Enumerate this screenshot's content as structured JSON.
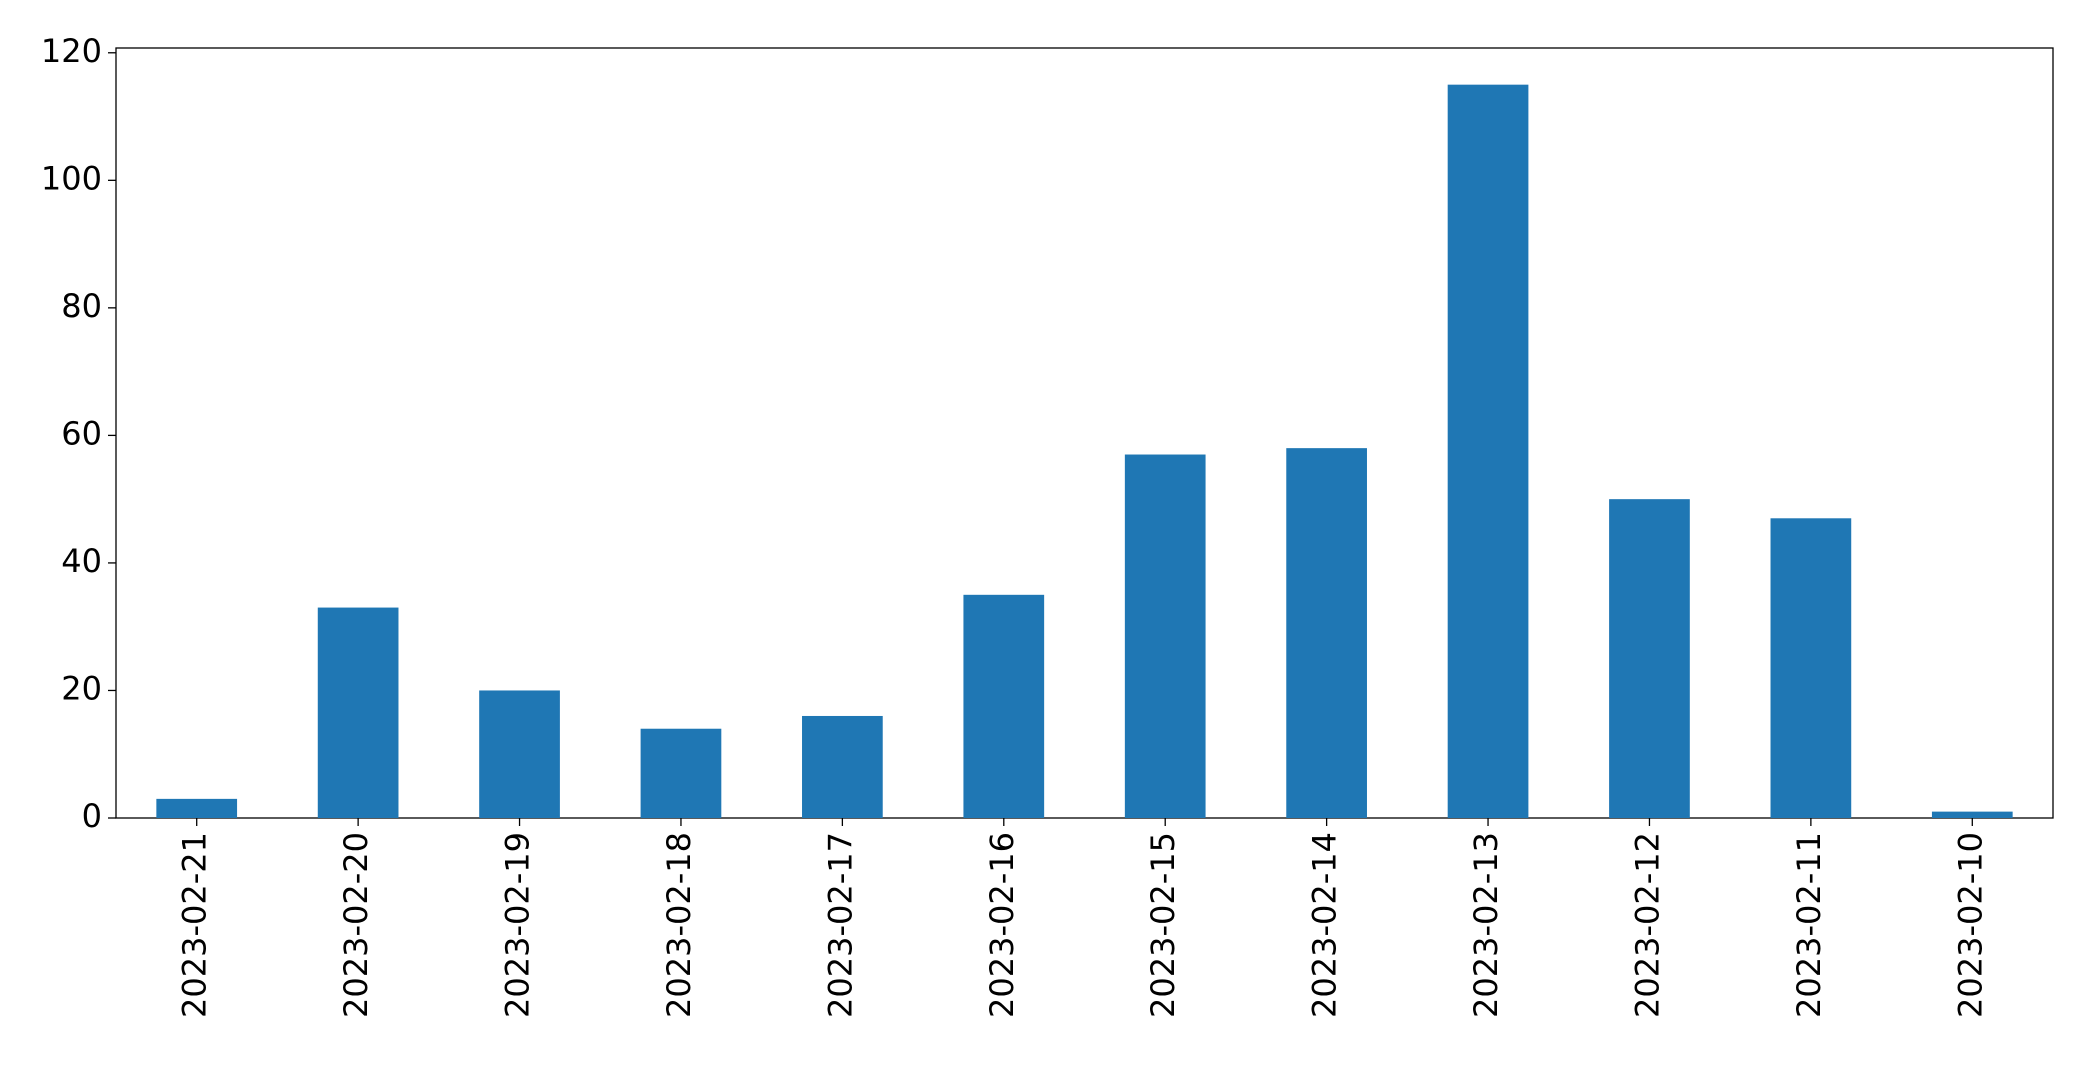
{
  "chart_data": {
    "type": "bar",
    "categories": [
      "2023-02-21",
      "2023-02-20",
      "2023-02-19",
      "2023-02-18",
      "2023-02-17",
      "2023-02-16",
      "2023-02-15",
      "2023-02-14",
      "2023-02-13",
      "2023-02-12",
      "2023-02-11",
      "2023-02-10"
    ],
    "values": [
      3,
      33,
      20,
      14,
      16,
      35,
      57,
      58,
      115,
      50,
      47,
      1
    ],
    "color": "#1f77b4",
    "ylim": [
      0,
      120.75
    ],
    "yticks": [
      0,
      20,
      40,
      60,
      80,
      100,
      120
    ],
    "grid": false
  }
}
